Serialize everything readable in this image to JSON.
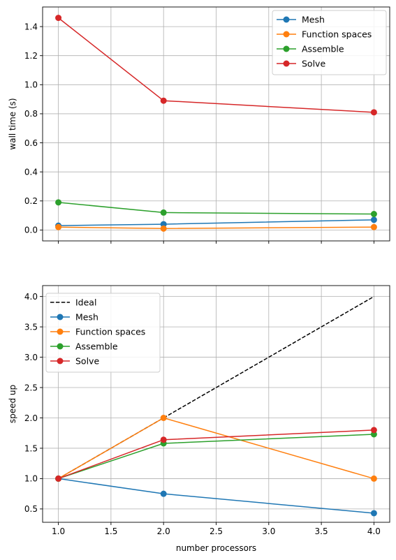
{
  "chart_data": [
    {
      "type": "line",
      "xlabel": "",
      "ylabel": "wall time (s)",
      "xlim": [
        0.85,
        4.15
      ],
      "ylim": [
        -0.075,
        1.535
      ],
      "grid": true,
      "legend_position": "top-right",
      "x": [
        1,
        2,
        4
      ],
      "xticks": [
        1.0,
        1.5,
        2.0,
        2.5,
        3.0,
        3.5,
        4.0
      ],
      "xtick_labels_visible": false,
      "yticks": [
        0.0,
        0.2,
        0.4,
        0.6,
        0.8,
        1.0,
        1.2,
        1.4
      ],
      "yticklabels": [
        "0.0",
        "0.2",
        "0.4",
        "0.6",
        "0.8",
        "1.0",
        "1.2",
        "1.4"
      ],
      "series": [
        {
          "name": "Mesh",
          "values": [
            0.03,
            0.04,
            0.07
          ],
          "color": "#1f77b4",
          "marker": "circle",
          "style": "solid"
        },
        {
          "name": "Function spaces",
          "values": [
            0.02,
            0.01,
            0.02
          ],
          "color": "#ff7f0e",
          "marker": "circle",
          "style": "solid"
        },
        {
          "name": "Assemble",
          "values": [
            0.19,
            0.12,
            0.11
          ],
          "color": "#2ca02c",
          "marker": "circle",
          "style": "solid"
        },
        {
          "name": "Solve",
          "values": [
            1.46,
            0.89,
            0.81
          ],
          "color": "#d62728",
          "marker": "circle",
          "style": "solid"
        }
      ]
    },
    {
      "type": "line",
      "xlabel": "number processors",
      "ylabel": "speed up",
      "xlim": [
        0.85,
        4.15
      ],
      "ylim": [
        0.28,
        4.18
      ],
      "grid": true,
      "legend_position": "top-left",
      "x": [
        1,
        2,
        4
      ],
      "xticks": [
        1.0,
        1.5,
        2.0,
        2.5,
        3.0,
        3.5,
        4.0
      ],
      "xticklabels": [
        "1.0",
        "1.5",
        "2.0",
        "2.5",
        "3.0",
        "3.5",
        "4.0"
      ],
      "xtick_labels_visible": true,
      "yticks": [
        0.5,
        1.0,
        1.5,
        2.0,
        2.5,
        3.0,
        3.5,
        4.0
      ],
      "yticklabels": [
        "0.5",
        "1.0",
        "1.5",
        "2.0",
        "2.5",
        "3.0",
        "3.5",
        "4.0"
      ],
      "series": [
        {
          "name": "Ideal",
          "values": [
            1,
            2,
            4
          ],
          "color": "#000000",
          "marker": "none",
          "style": "dashed"
        },
        {
          "name": "Mesh",
          "values": [
            1.0,
            0.75,
            0.43
          ],
          "color": "#1f77b4",
          "marker": "circle",
          "style": "solid"
        },
        {
          "name": "Function spaces",
          "values": [
            1.0,
            2.0,
            1.0
          ],
          "color": "#ff7f0e",
          "marker": "circle",
          "style": "solid"
        },
        {
          "name": "Assemble",
          "values": [
            1.0,
            1.58,
            1.73
          ],
          "color": "#2ca02c",
          "marker": "circle",
          "style": "solid"
        },
        {
          "name": "Solve",
          "values": [
            1.0,
            1.64,
            1.8
          ],
          "color": "#d62728",
          "marker": "circle",
          "style": "solid"
        }
      ]
    }
  ]
}
